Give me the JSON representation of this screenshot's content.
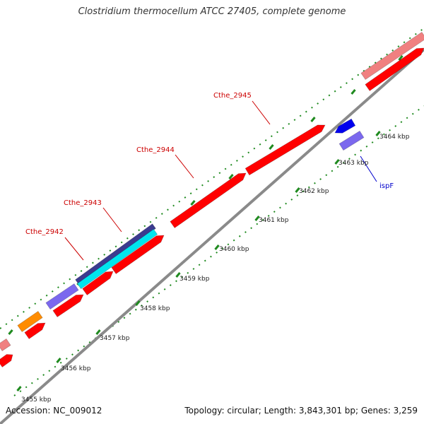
{
  "title": "Clostridium thermocellum ATCC 27405, complete genome",
  "footer": {
    "accession": "Accession: NC_009012",
    "summary": "Topology: circular; Length: 3,843,301 bp; Genes: 3,259"
  },
  "colors": {
    "backbone": "#8a8a8a",
    "tick": "#1f8a1f",
    "label_red": "#cc0000",
    "label_blue": "#0000cc",
    "gene_red": "#ff0000",
    "gene_pink": "#f08080",
    "gene_navy": "#3b3b8f",
    "gene_cyan": "#00e5ee",
    "gene_purple": "#7b68ee",
    "gene_blue": "#0000ee",
    "gene_orange": "#ff8c00"
  },
  "scale_labels": [
    "3455 kbp",
    "3456 kbp",
    "3457 kbp",
    "3458 kbp",
    "3459 kbp",
    "3460 kbp",
    "3461 kbp",
    "3462 kbp",
    "3463 kbp",
    "3464 kbp"
  ],
  "gene_labels": [
    {
      "name": "Cthe_2942",
      "color": "label_red"
    },
    {
      "name": "Cthe_2943",
      "color": "label_red"
    },
    {
      "name": "Cthe_2944",
      "color": "label_red"
    },
    {
      "name": "Cthe_2945",
      "color": "label_red"
    },
    {
      "name": "ispF",
      "color": "label_blue"
    }
  ]
}
